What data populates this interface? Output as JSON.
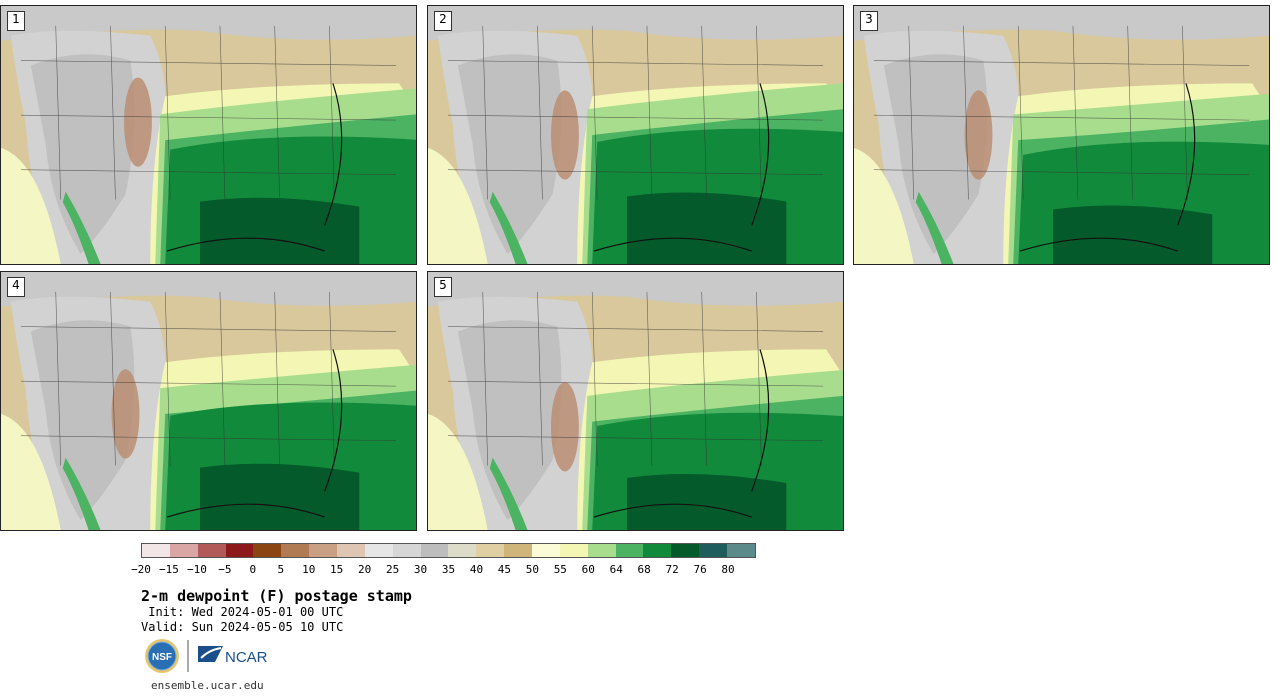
{
  "panels": [
    {
      "label": "1"
    },
    {
      "label": "2"
    },
    {
      "label": "3"
    },
    {
      "label": "4"
    },
    {
      "label": "5"
    }
  ],
  "colorbar": {
    "colors": [
      "#f2e6e6",
      "#d9a5a5",
      "#b25a5a",
      "#8c1a1a",
      "#8b4513",
      "#b07a52",
      "#c9a084",
      "#dfc6b2",
      "#e6e6e6",
      "#d6d6d6",
      "#bdbdbd",
      "#dcdcc8",
      "#e0cfa2",
      "#cfb57a",
      "#fbfbd8",
      "#f4f7b4",
      "#a8dd8e",
      "#4bb362",
      "#128a3c",
      "#045a2a",
      "#1f5c5c",
      "#5c8a8a"
    ],
    "tick_labels": [
      "−20",
      "−15",
      "−10",
      "−5",
      "0",
      "5",
      "10",
      "15",
      "20",
      "25",
      "30",
      "35",
      "40",
      "45",
      "50",
      "55",
      "60",
      "64",
      "68",
      "72",
      "76",
      "80"
    ]
  },
  "title": "2-m dewpoint (F) postage stamp",
  "init_line": " Init: Wed 2024-05-01 00 UTC",
  "valid_line": "Valid: Sun 2024-05-05 10 UTC",
  "logos": {
    "nsf": "NSF",
    "ncar": "NCAR"
  },
  "website": "ensemble.ucar.edu"
}
